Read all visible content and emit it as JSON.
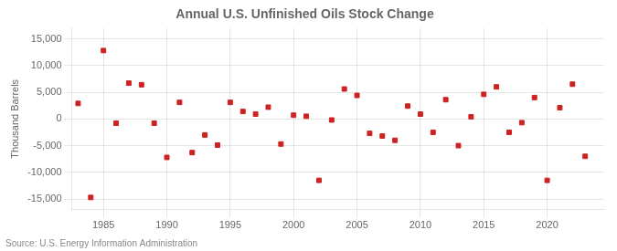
{
  "chart_data": {
    "type": "scatter",
    "title": "Annual U.S. Unfinished Oils Stock Change",
    "ylabel": "Thousand Barrels",
    "annotation": "Source: U.S. Energy Information Administration",
    "x": [
      1983,
      1984,
      1985,
      1986,
      1987,
      1988,
      1989,
      1990,
      1991,
      1992,
      1993,
      1994,
      1995,
      1996,
      1997,
      1998,
      1999,
      2000,
      2001,
      2002,
      2003,
      2004,
      2005,
      2006,
      2007,
      2008,
      2009,
      2010,
      2011,
      2012,
      2013,
      2014,
      2015,
      2016,
      2017,
      2018,
      2019,
      2020,
      2021,
      2022,
      2023
    ],
    "values": [
      2900,
      -14700,
      12800,
      -800,
      6700,
      6400,
      -800,
      -7200,
      3100,
      -6300,
      -3000,
      -4900,
      3100,
      1400,
      900,
      2200,
      -4700,
      700,
      500,
      -11500,
      -200,
      5600,
      4400,
      -2700,
      -3200,
      -4000,
      2400,
      900,
      -2500,
      3600,
      -5000,
      400,
      4600,
      6000,
      -2500,
      -700,
      4000,
      -11500,
      2100,
      6500,
      -7000
    ],
    "color": "#cc2222",
    "marker": "square",
    "xlim": [
      1982.5,
      2024.5
    ],
    "xticks": [
      1985,
      1990,
      1995,
      2000,
      2005,
      2010,
      2015,
      2020
    ],
    "ylim": [
      -17000,
      17000
    ],
    "yticks": [
      {
        "value": -15000,
        "label": "-15,000"
      },
      {
        "value": -10000,
        "label": "-10,000"
      },
      {
        "value": -5000,
        "label": "-5,000"
      },
      0,
      {
        "value": 5000,
        "label": "5,000"
      },
      {
        "value": 10000,
        "label": "10,000"
      },
      {
        "value": 15000,
        "label": "15,000"
      }
    ],
    "grid": true
  }
}
